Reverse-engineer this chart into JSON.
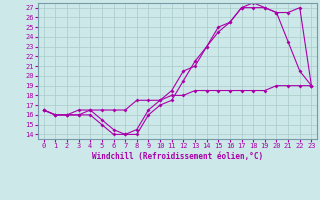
{
  "xlabel": "Windchill (Refroidissement éolien,°C)",
  "bg_color": "#cce8e8",
  "grid_color": "#aacccc",
  "line_color": "#aa00aa",
  "spine_color": "#7799aa",
  "xlim": [
    -0.5,
    23.5
  ],
  "ylim": [
    13.5,
    27.5
  ],
  "xticks": [
    0,
    1,
    2,
    3,
    4,
    5,
    6,
    7,
    8,
    9,
    10,
    11,
    12,
    13,
    14,
    15,
    16,
    17,
    18,
    19,
    20,
    21,
    22,
    23
  ],
  "yticks": [
    14,
    15,
    16,
    17,
    18,
    19,
    20,
    21,
    22,
    23,
    24,
    25,
    26,
    27
  ],
  "line1_x": [
    0,
    1,
    2,
    3,
    4,
    5,
    6,
    7,
    8,
    9,
    10,
    11,
    12,
    13,
    14,
    15,
    16,
    17,
    18,
    19,
    20,
    21,
    22,
    23
  ],
  "line1_y": [
    16.5,
    16.0,
    16.0,
    16.0,
    16.5,
    15.5,
    14.5,
    14.0,
    14.5,
    16.5,
    17.5,
    18.5,
    20.5,
    21.0,
    23.0,
    24.5,
    25.5,
    27.0,
    27.0,
    27.0,
    26.5,
    23.5,
    20.5,
    19.0
  ],
  "line2_x": [
    0,
    1,
    2,
    3,
    4,
    5,
    6,
    7,
    8,
    9,
    10,
    11,
    12,
    13,
    14,
    15,
    16,
    17,
    18,
    19,
    20,
    21,
    22,
    23
  ],
  "line2_y": [
    16.5,
    16.0,
    16.0,
    16.0,
    16.0,
    15.0,
    14.0,
    14.0,
    14.0,
    16.0,
    17.0,
    17.5,
    19.5,
    21.5,
    23.0,
    25.0,
    25.5,
    27.0,
    27.5,
    27.0,
    26.5,
    26.5,
    27.0,
    19.0
  ],
  "line3_x": [
    0,
    1,
    2,
    3,
    4,
    5,
    6,
    7,
    8,
    9,
    10,
    11,
    12,
    13,
    14,
    15,
    16,
    17,
    18,
    19,
    20,
    21,
    22,
    23
  ],
  "line3_y": [
    16.5,
    16.0,
    16.0,
    16.5,
    16.5,
    16.5,
    16.5,
    16.5,
    17.5,
    17.5,
    17.5,
    18.0,
    18.0,
    18.5,
    18.5,
    18.5,
    18.5,
    18.5,
    18.5,
    18.5,
    19.0,
    19.0,
    19.0,
    19.0
  ],
  "tick_fontsize": 5.0,
  "xlabel_fontsize": 5.5,
  "marker_size": 2.0,
  "linewidth": 0.8
}
